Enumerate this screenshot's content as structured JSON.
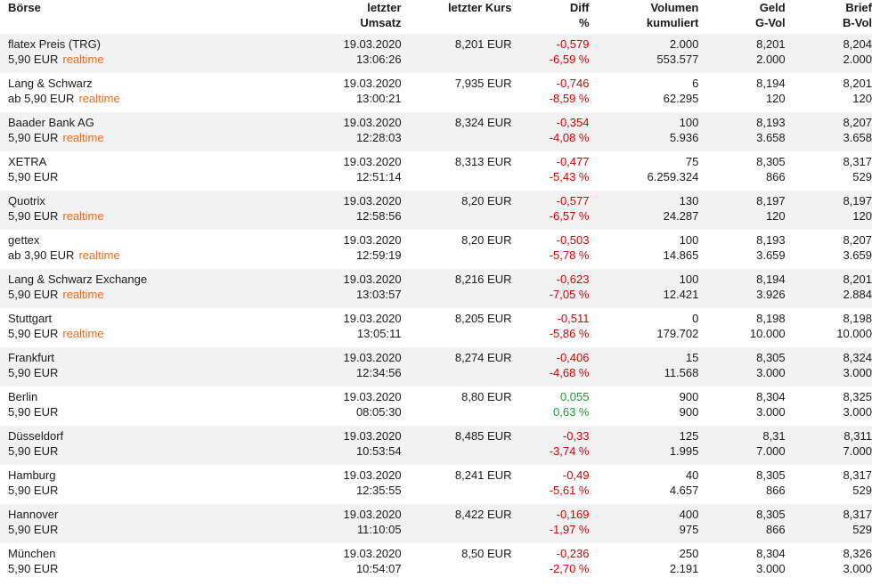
{
  "header": {
    "boerse": "Börse",
    "umsatz": [
      "letzter",
      "Umsatz"
    ],
    "kurs": "letzter Kurs",
    "diff": [
      "Diff",
      "%"
    ],
    "volumen": [
      "Volumen",
      "kumuliert"
    ],
    "geld": [
      "Geld",
      "G-Vol"
    ],
    "brief": [
      "Brief",
      "B-Vol"
    ]
  },
  "rows": [
    {
      "name": "flatex Preis (TRG)",
      "fee": "5,90 EUR",
      "realtime": "realtime",
      "date": "19.03.2020",
      "time": "13:06:26",
      "kurs": "8,201 EUR",
      "diff": "-0,579",
      "pct": "-6,59 %",
      "vol": "2.000",
      "volcum": "553.577",
      "geld": "8,201",
      "gvol": "2.000",
      "brief": "8,204",
      "bvol": "2.000",
      "trend": "neg"
    },
    {
      "name": "Lang & Schwarz",
      "fee": "ab 5,90 EUR",
      "realtime": "realtime",
      "date": "19.03.2020",
      "time": "13:00:21",
      "kurs": "7,935 EUR",
      "diff": "-0,746",
      "pct": "-8,59 %",
      "vol": "6",
      "volcum": "62.295",
      "geld": "8,194",
      "gvol": "120",
      "brief": "8,201",
      "bvol": "120",
      "trend": "neg"
    },
    {
      "name": "Baader Bank AG",
      "fee": "5,90 EUR",
      "realtime": "realtime",
      "date": "19.03.2020",
      "time": "12:28:03",
      "kurs": "8,324 EUR",
      "diff": "-0,354",
      "pct": "-4,08 %",
      "vol": "100",
      "volcum": "5.936",
      "geld": "8,193",
      "gvol": "3.658",
      "brief": "8,207",
      "bvol": "3.658",
      "trend": "neg"
    },
    {
      "name": "XETRA",
      "fee": "5,90 EUR",
      "realtime": "",
      "date": "19.03.2020",
      "time": "12:51:14",
      "kurs": "8,313 EUR",
      "diff": "-0,477",
      "pct": "-5,43 %",
      "vol": "75",
      "volcum": "6.259.324",
      "geld": "8,305",
      "gvol": "866",
      "brief": "8,317",
      "bvol": "529",
      "trend": "neg"
    },
    {
      "name": "Quotrix",
      "fee": "5,90 EUR",
      "realtime": "realtime",
      "date": "19.03.2020",
      "time": "12:58:56",
      "kurs": "8,20 EUR",
      "diff": "-0,577",
      "pct": "-6,57 %",
      "vol": "130",
      "volcum": "24.287",
      "geld": "8,197",
      "gvol": "120",
      "brief": "8,197",
      "bvol": "120",
      "trend": "neg"
    },
    {
      "name": "gettex",
      "fee": "ab 3,90 EUR",
      "realtime": "realtime",
      "date": "19.03.2020",
      "time": "12:59:19",
      "kurs": "8,20 EUR",
      "diff": "-0,503",
      "pct": "-5,78 %",
      "vol": "100",
      "volcum": "14.865",
      "geld": "8,193",
      "gvol": "3.659",
      "brief": "8,207",
      "bvol": "3.659",
      "trend": "neg"
    },
    {
      "name": "Lang & Schwarz Exchange",
      "fee": "5,90 EUR",
      "realtime": "realtime",
      "date": "19.03.2020",
      "time": "13:03:57",
      "kurs": "8,216 EUR",
      "diff": "-0,623",
      "pct": "-7,05 %",
      "vol": "100",
      "volcum": "12.421",
      "geld": "8,194",
      "gvol": "3.926",
      "brief": "8,201",
      "bvol": "2.884",
      "trend": "neg"
    },
    {
      "name": "Stuttgart",
      "fee": "5,90 EUR",
      "realtime": "realtime",
      "date": "19.03.2020",
      "time": "13:05:11",
      "kurs": "8,205 EUR",
      "diff": "-0,511",
      "pct": "-5,86 %",
      "vol": "0",
      "volcum": "179.702",
      "geld": "8,198",
      "gvol": "10.000",
      "brief": "8,198",
      "bvol": "10.000",
      "trend": "neg"
    },
    {
      "name": "Frankfurt",
      "fee": "5,90 EUR",
      "realtime": "",
      "date": "19.03.2020",
      "time": "12:34:56",
      "kurs": "8,274 EUR",
      "diff": "-0,406",
      "pct": "-4,68 %",
      "vol": "15",
      "volcum": "11.568",
      "geld": "8,305",
      "gvol": "3.000",
      "brief": "8,324",
      "bvol": "3.000",
      "trend": "neg"
    },
    {
      "name": "Berlin",
      "fee": "5,90 EUR",
      "realtime": "",
      "date": "19.03.2020",
      "time": "08:05:30",
      "kurs": "8,80 EUR",
      "diff": "0,055",
      "pct": "0,63 %",
      "vol": "900",
      "volcum": "900",
      "geld": "8,304",
      "gvol": "3.000",
      "brief": "8,325",
      "bvol": "3.000",
      "trend": "pos"
    },
    {
      "name": "Düsseldorf",
      "fee": "5,90 EUR",
      "realtime": "",
      "date": "19.03.2020",
      "time": "10:53:54",
      "kurs": "8,485 EUR",
      "diff": "-0,33",
      "pct": "-3,74 %",
      "vol": "125",
      "volcum": "1.995",
      "geld": "8,31",
      "gvol": "7.000",
      "brief": "8,311",
      "bvol": "7.000",
      "trend": "neg"
    },
    {
      "name": "Hamburg",
      "fee": "5,90 EUR",
      "realtime": "",
      "date": "19.03.2020",
      "time": "12:35:55",
      "kurs": "8,241 EUR",
      "diff": "-0,49",
      "pct": "-5,61 %",
      "vol": "40",
      "volcum": "4.657",
      "geld": "8,305",
      "gvol": "866",
      "brief": "8,317",
      "bvol": "529",
      "trend": "neg"
    },
    {
      "name": "Hannover",
      "fee": "5,90 EUR",
      "realtime": "",
      "date": "19.03.2020",
      "time": "11:10:05",
      "kurs": "8,422 EUR",
      "diff": "-0,169",
      "pct": "-1,97 %",
      "vol": "400",
      "volcum": "975",
      "geld": "8,305",
      "gvol": "866",
      "brief": "8,317",
      "bvol": "529",
      "trend": "neg"
    },
    {
      "name": "München",
      "fee": "5,90 EUR",
      "realtime": "",
      "date": "19.03.2020",
      "time": "10:54:07",
      "kurs": "8,50 EUR",
      "diff": "-0,236",
      "pct": "-2,70 %",
      "vol": "250",
      "volcum": "2.191",
      "geld": "8,304",
      "gvol": "3.000",
      "brief": "8,326",
      "bvol": "3.000",
      "trend": "neg"
    }
  ],
  "colors": {
    "negative": "#d40000",
    "positive": "#1a9a3a",
    "realtime": "#ee6a13",
    "row_alt": "#f2f2f2"
  }
}
